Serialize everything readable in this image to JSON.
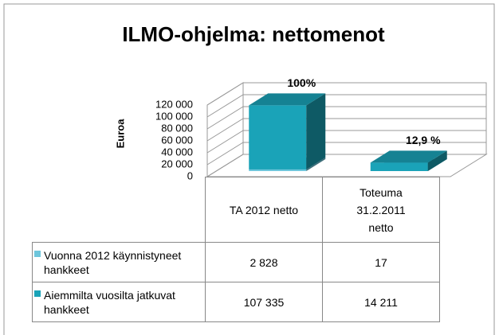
{
  "chart_data": {
    "type": "bar3d_stacked",
    "title": "ILMO-ohjelma: nettomenot",
    "ylabel": "Euroa",
    "categories": [
      "TA 2012 netto",
      "Toteuma 31.2.2011 netto"
    ],
    "series": [
      {
        "name": "Vuonna 2012 käynnistyneet hankkeet",
        "color": "#6ec6dc",
        "values": [
          2828,
          17
        ],
        "value_labels": [
          "2 828",
          "17"
        ]
      },
      {
        "name": "Aiemmilta vuosilta jatkuvat hankkeet",
        "color": "#1aa3b8",
        "values": [
          107335,
          14211
        ],
        "value_labels": [
          "107 335",
          "14 211"
        ]
      }
    ],
    "annotations": [
      "100%",
      "12,9 %"
    ],
    "ylim": [
      0,
      120000
    ],
    "yticks": [
      0,
      {
        "value": 20000,
        "label": "20 000"
      },
      {
        "value": 40000,
        "label": "40 000"
      },
      {
        "value": 60000,
        "label": "60 000"
      },
      {
        "value": 80000,
        "label": "80 000"
      },
      {
        "value": 100000,
        "label": "100 000"
      },
      {
        "value": 120000,
        "label": "120 000"
      }
    ],
    "grid": true
  }
}
